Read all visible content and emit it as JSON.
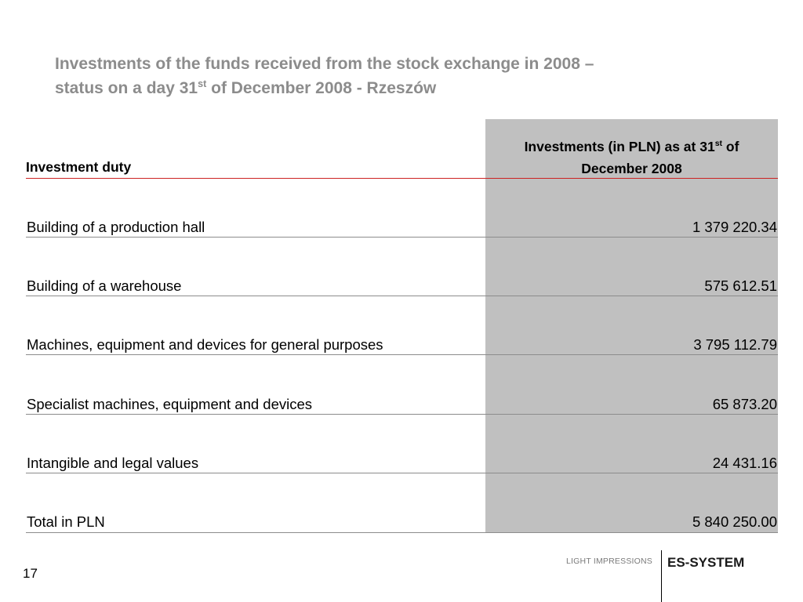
{
  "title": {
    "line1": "Investments of the funds received from the stock exchange in 2008 –",
    "line2_before": "status on a day 31",
    "line2_sup": "st",
    "line2_after": " of December 2008 - Rzeszów"
  },
  "table": {
    "header_duty": "Investment duty",
    "header_amount_before": "Investments (in PLN) as at 31",
    "header_amount_sup": "st",
    "header_amount_after": " of",
    "header_amount_line2": "December 2008",
    "rows": [
      {
        "duty": "Building of a production hall",
        "amount": "1 379 220.34"
      },
      {
        "duty": "Building of a warehouse",
        "amount": "575 612.51"
      },
      {
        "duty": "Machines, equipment and devices for general purposes",
        "amount": "3 795 112.79"
      },
      {
        "duty": "Specialist machines, equipment and devices",
        "amount": "65 873.20"
      },
      {
        "duty": "Intangible and legal values",
        "amount": "24 431.16"
      },
      {
        "duty": "Total in PLN",
        "amount": "5 840 250.00"
      }
    ]
  },
  "footer": {
    "page_number": "17",
    "tagline": "LIGHT IMPRESSIONS",
    "brand": "ES-SYSTEM"
  },
  "colors": {
    "title": "#8c8c8c",
    "shade": "#c0c0c0",
    "header_rule": "#cc2222",
    "row_rule": "#8c8c8c"
  }
}
